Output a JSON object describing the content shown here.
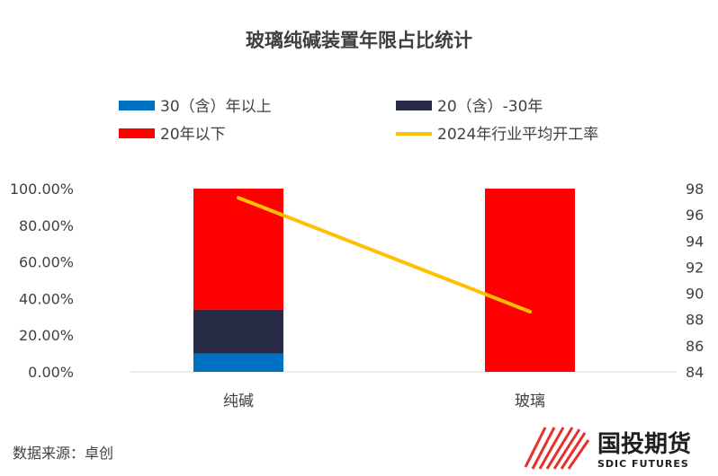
{
  "chart_data": {
    "type": "bar",
    "title": "玻璃纯碱装置年限占比统计",
    "categories": [
      "纯碱",
      "玻璃"
    ],
    "stacked": true,
    "series": [
      {
        "name": "30（含）年以上",
        "values": [
          0.1,
          0.0
        ],
        "color": "#0070C0"
      },
      {
        "name": "20（含）-30年",
        "values": [
          0.24,
          0.0
        ],
        "color": "#262A44"
      },
      {
        "name": "20年以下",
        "values": [
          0.66,
          1.0
        ],
        "color": "#FF0000"
      }
    ],
    "line_series": {
      "name": "2024年行业平均开工率",
      "values": [
        97.3,
        88.6
      ],
      "color": "#FFC000",
      "axis": "right"
    },
    "ylim": [
      0,
      1
    ],
    "y_ticks": [
      "0.00%",
      "20.00%",
      "40.00%",
      "60.00%",
      "80.00%",
      "100.00%"
    ],
    "y2lim": [
      84,
      98
    ],
    "y2_ticks": [
      "84",
      "86",
      "88",
      "90",
      "92",
      "94",
      "96",
      "98"
    ],
    "xlabel": "",
    "ylabel": "",
    "grid": false,
    "legend_position": "top"
  },
  "source": "数据来源：卓创",
  "logo": {
    "name_cn": "国投期货",
    "name_en": "SDIC FUTURES",
    "mark": "logo-stripes-icon"
  }
}
